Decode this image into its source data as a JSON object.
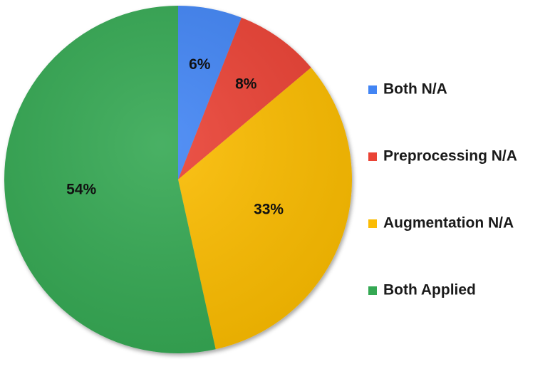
{
  "chart_data": {
    "type": "pie",
    "title": "",
    "slices": [
      {
        "label": "Both N/A",
        "value": 6,
        "value_label": "6%",
        "color": "#4285f4"
      },
      {
        "label": "Preprocessing N/A",
        "value": 8,
        "value_label": "8%",
        "color": "#ea4335"
      },
      {
        "label": "Augmentation N/A",
        "value": 33,
        "value_label": "33%",
        "color": "#fbbc04"
      },
      {
        "label": "Both Applied",
        "value": 54,
        "value_label": "54%",
        "color": "#34a853"
      }
    ],
    "start_angle_deg": 0,
    "direction": "clockwise",
    "legend": {
      "position": "right"
    }
  }
}
